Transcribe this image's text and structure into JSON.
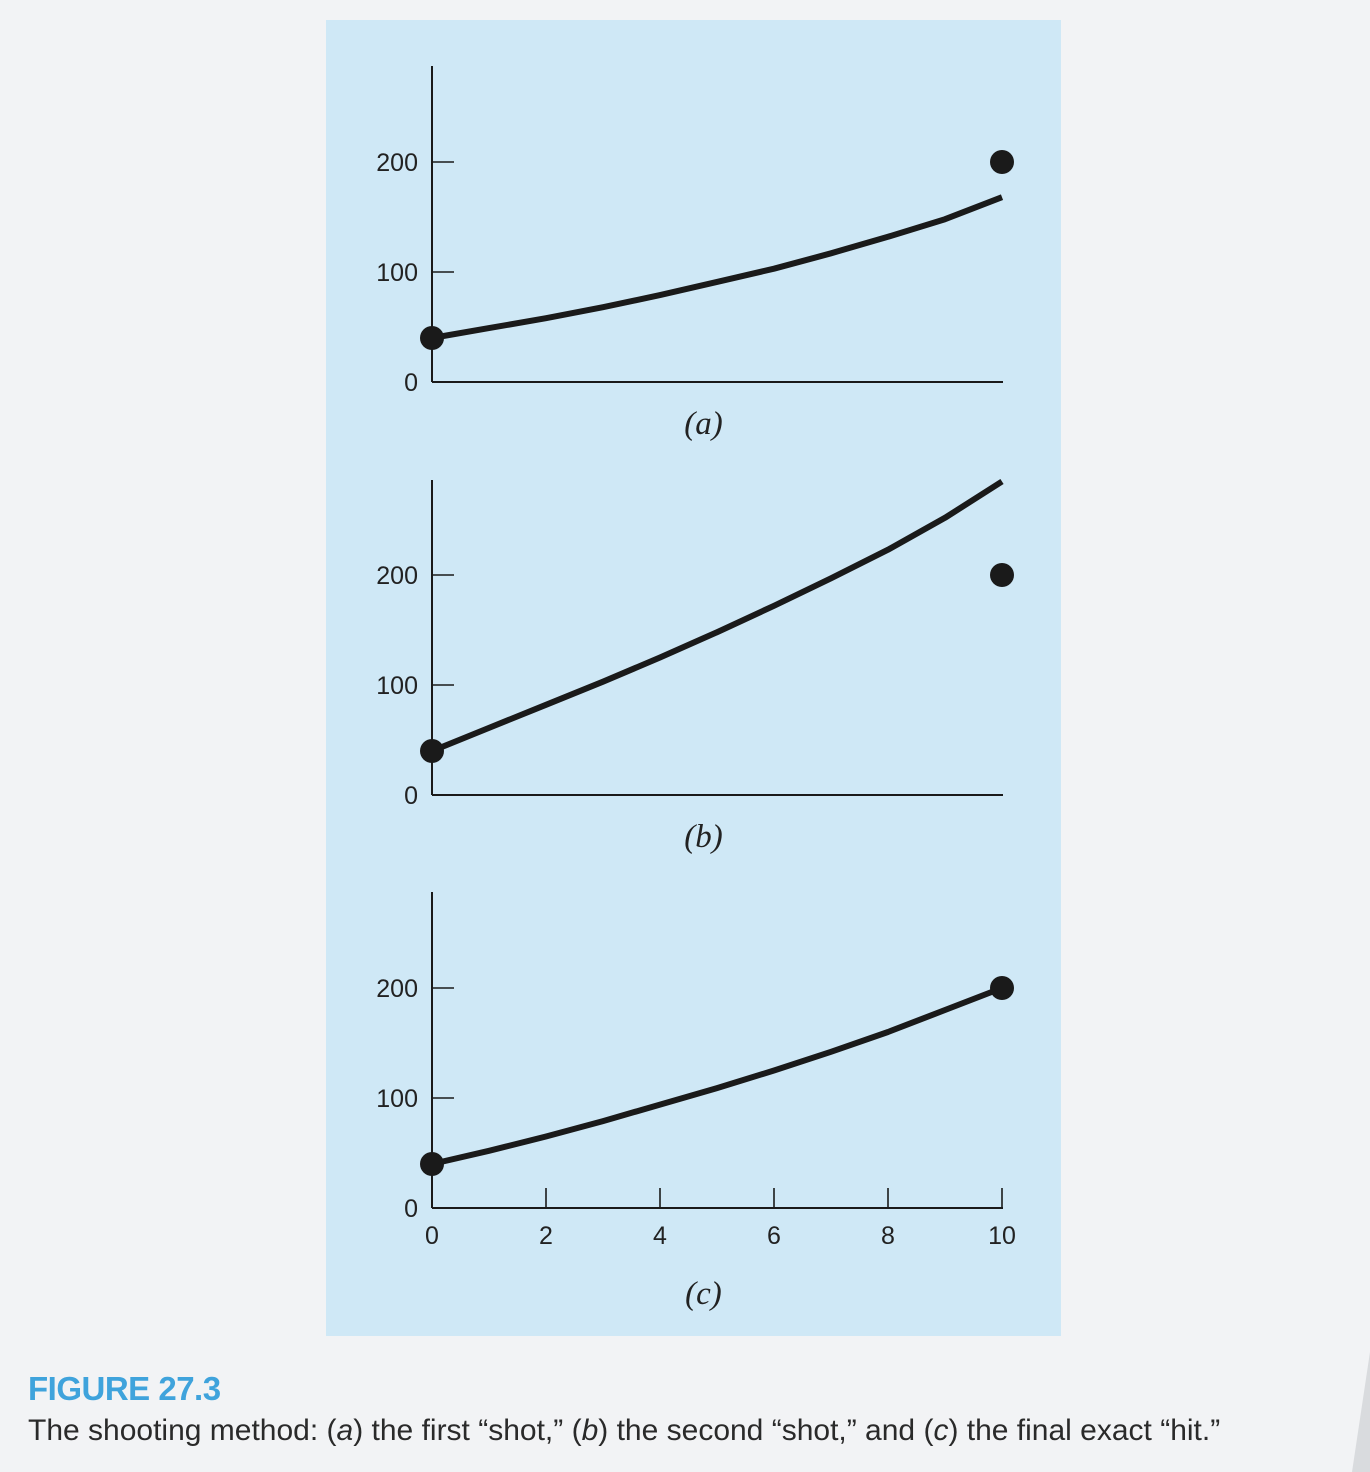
{
  "chart_data": [
    {
      "type": "line",
      "panel_label": "a",
      "x": [
        0,
        1,
        2,
        3,
        4,
        5,
        6,
        7,
        8,
        9,
        10
      ],
      "series": [
        {
          "name": "first shot",
          "values": [
            40,
            49,
            58,
            68,
            79,
            91,
            103,
            117,
            132,
            148,
            168
          ]
        }
      ],
      "points": [
        {
          "x": 0,
          "y": 40
        },
        {
          "x": 10,
          "y": 200
        }
      ],
      "yticks": [
        0,
        100,
        200
      ],
      "xticks": [],
      "xlim": [
        0,
        10
      ],
      "ylim": [
        0,
        285
      ],
      "xlabel": "",
      "ylabel": "",
      "grid": false
    },
    {
      "type": "line",
      "panel_label": "b",
      "x": [
        0,
        1,
        2,
        3,
        4,
        5,
        6,
        7,
        8,
        9,
        10
      ],
      "series": [
        {
          "name": "second shot",
          "values": [
            40,
            61,
            82,
            103,
            125,
            148,
            172,
            197,
            223,
            252,
            285
          ]
        }
      ],
      "points": [
        {
          "x": 0,
          "y": 40
        },
        {
          "x": 10,
          "y": 200
        }
      ],
      "yticks": [
        0,
        100,
        200
      ],
      "xticks": [],
      "xlim": [
        0,
        10
      ],
      "ylim": [
        0,
        285
      ],
      "xlabel": "",
      "ylabel": "",
      "grid": false
    },
    {
      "type": "line",
      "panel_label": "c",
      "x": [
        0,
        1,
        2,
        3,
        4,
        5,
        6,
        7,
        8,
        9,
        10
      ],
      "series": [
        {
          "name": "final exact hit",
          "values": [
            40,
            52,
            65,
            79,
            94,
            109,
            125,
            142,
            160,
            180,
            200
          ]
        }
      ],
      "points": [
        {
          "x": 0,
          "y": 40
        },
        {
          "x": 10,
          "y": 200
        }
      ],
      "yticks": [
        0,
        100,
        200
      ],
      "xticks": [
        0,
        2,
        4,
        6,
        8,
        10
      ],
      "xlim": [
        0,
        10
      ],
      "ylim": [
        0,
        285
      ],
      "xlabel": "",
      "ylabel": "",
      "grid": false
    }
  ],
  "caption": {
    "number": "FIGURE 27.3",
    "parts": [
      "The shooting method: (",
      "a",
      ") the first “shot,” (",
      "b",
      ") the second “shot,” and (",
      "c",
      ") the final exact “hit.”"
    ]
  },
  "colors": {
    "panel_background": "#cfe8f6",
    "page_background": "#f2f3f5",
    "line": "#1a1a1a",
    "figure_number": "#3fa3dc"
  }
}
